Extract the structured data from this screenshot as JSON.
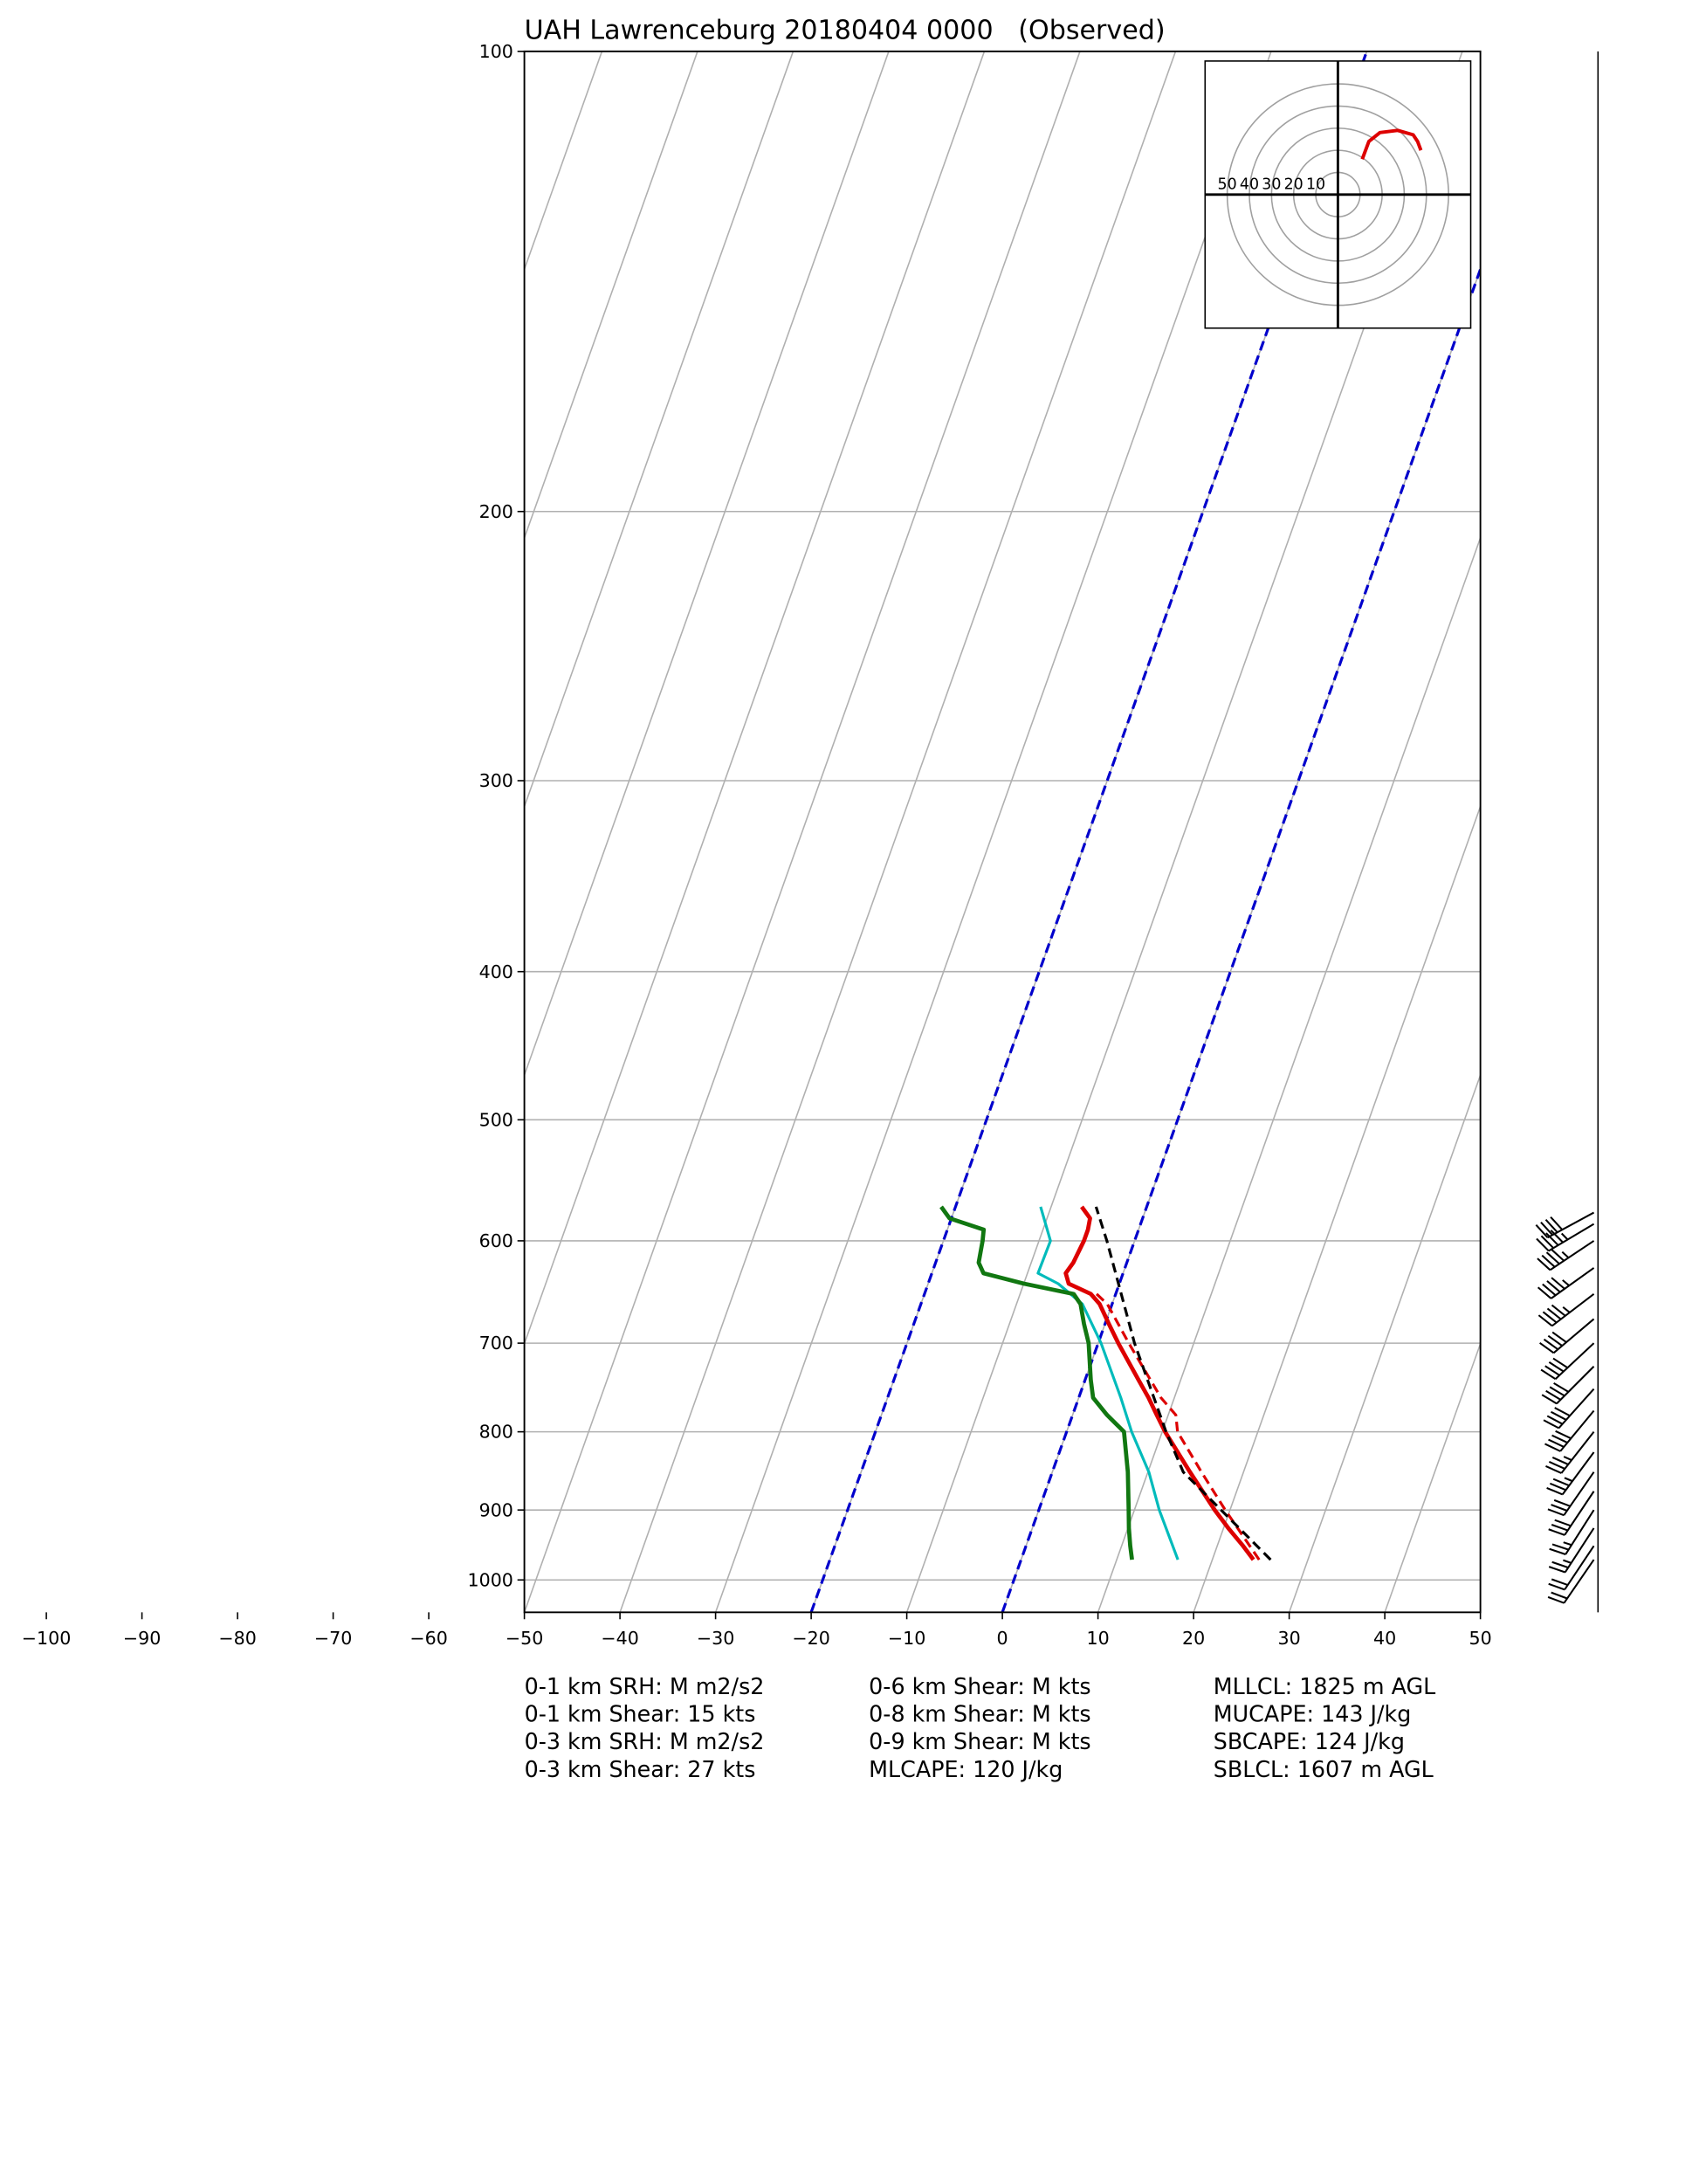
{
  "chart_data": {
    "type": "skewt",
    "title": "UAH Lawrenceburg 20180404 0000   (Observed)",
    "xlim": [
      -50,
      50
    ],
    "ylim": [
      1050,
      100
    ],
    "xticks": [
      {
        "value": -100,
        "label": "−100"
      },
      {
        "value": -90,
        "label": "−90"
      },
      {
        "value": -80,
        "label": "−80"
      },
      {
        "value": -70,
        "label": "−70"
      },
      {
        "value": -60,
        "label": "−60"
      },
      {
        "value": -50,
        "label": "−50"
      },
      {
        "value": -40,
        "label": "−40"
      },
      {
        "value": -30,
        "label": "−30"
      },
      {
        "value": -20,
        "label": "−20"
      },
      {
        "value": -10,
        "label": "−10"
      },
      0,
      10,
      20,
      30,
      40,
      50
    ],
    "yticks": [
      100,
      200,
      300,
      400,
      500,
      600,
      700,
      800,
      900,
      1000
    ],
    "grid": true,
    "dashed_isotherms": [
      -20,
      0
    ],
    "dashed_isotherm_color": "#0000cc",
    "series": [
      {
        "color": "#dd0000",
        "dash": true,
        "linewidth": 2,
        "pressure": [
          970,
          900,
          850,
          800,
          780,
          760,
          700,
          660,
          650
        ],
        "values": [
          24.9,
          19.5,
          15.6,
          11.6,
          10.8,
          8.6,
          3.2,
          -0.5,
          -2.0
        ]
      },
      {
        "color": "#dd0000",
        "dash": false,
        "linewidth": 3,
        "pressure": [
          970,
          950,
          925,
          900,
          850,
          800,
          780,
          760,
          740,
          700,
          680,
          660,
          650,
          640,
          630,
          620,
          600,
          590,
          580,
          570
        ],
        "values": [
          24.3,
          22.7,
          20.5,
          18.4,
          14.4,
          10.3,
          8.8,
          7.3,
          5.6,
          2.1,
          0.4,
          -1.3,
          -2.6,
          -5.3,
          -6.0,
          -5.6,
          -5.3,
          -5.3,
          -5.5,
          -6.8
        ]
      },
      {
        "color": "#00bbbb",
        "dash": false,
        "linewidth": 2,
        "pressure": [
          970,
          900,
          850,
          800,
          760,
          700,
          660,
          640,
          630,
          600,
          570
        ],
        "values": [
          16.4,
          12.6,
          10.1,
          6.8,
          4.4,
          0.3,
          -3.1,
          -6.4,
          -8.9,
          -8.8,
          -11.1
        ]
      },
      {
        "color": "#117711",
        "dash": false,
        "linewidth": 3,
        "pressure": [
          970,
          950,
          925,
          900,
          850,
          800,
          780,
          760,
          740,
          700,
          680,
          660,
          650,
          640,
          630,
          620,
          600,
          590,
          580,
          570
        ],
        "values": [
          11.6,
          10.9,
          10.1,
          9.4,
          7.9,
          6.0,
          3.6,
          1.5,
          0.6,
          -1.0,
          -2.2,
          -3.3,
          -4.4,
          -10.0,
          -14.6,
          -15.5,
          -15.9,
          -16.2,
          -20.2,
          -21.5
        ]
      },
      {
        "color": "#000000",
        "dash": true,
        "linewidth": 2,
        "pressure": [
          970,
          850,
          800,
          700,
          600,
          570
        ],
        "values": [
          26.1,
          13.7,
          10.4,
          3.8,
          -2.9,
          -5.3
        ]
      }
    ],
    "hodograph": {
      "lim": [
        -60,
        60
      ],
      "rings": [
        10,
        20,
        30,
        40,
        50
      ],
      "color": "#dd0000",
      "u": [
        11,
        14,
        19,
        27,
        34,
        36,
        37.5
      ],
      "v": [
        16,
        24,
        28,
        29,
        27,
        24,
        20
      ]
    },
    "wind": {
      "pressure": [
        970,
        950,
        925,
        900,
        875,
        850,
        825,
        800,
        775,
        750,
        725,
        700,
        675,
        650,
        625,
        600,
        585,
        575
      ],
      "u": [
        11,
        12,
        13,
        14,
        16,
        18,
        20,
        22,
        24,
        26,
        28,
        30,
        32,
        34,
        35,
        36,
        37,
        37
      ],
      "v": [
        16,
        18,
        20,
        22,
        24,
        26,
        27,
        28,
        29,
        29,
        28,
        28,
        27,
        26,
        25,
        24,
        22,
        20
      ]
    },
    "indices": [
      [
        "0-1 km SRH: M m2/s2",
        "0-1 km Shear: 15 kts",
        "0-3 km SRH: M m2/s2",
        "0-3 km Shear: 27 kts"
      ],
      [
        "0-6 km Shear: M kts",
        "0-8 km Shear: M kts",
        "0-9 km Shear: M kts",
        "MLCAPE: 120 J/kg"
      ],
      [
        "MLLCL: 1825 m AGL",
        "MUCAPE: 143 J/kg",
        "SBCAPE: 124 J/kg",
        "SBLCL: 1607 m AGL"
      ]
    ]
  }
}
